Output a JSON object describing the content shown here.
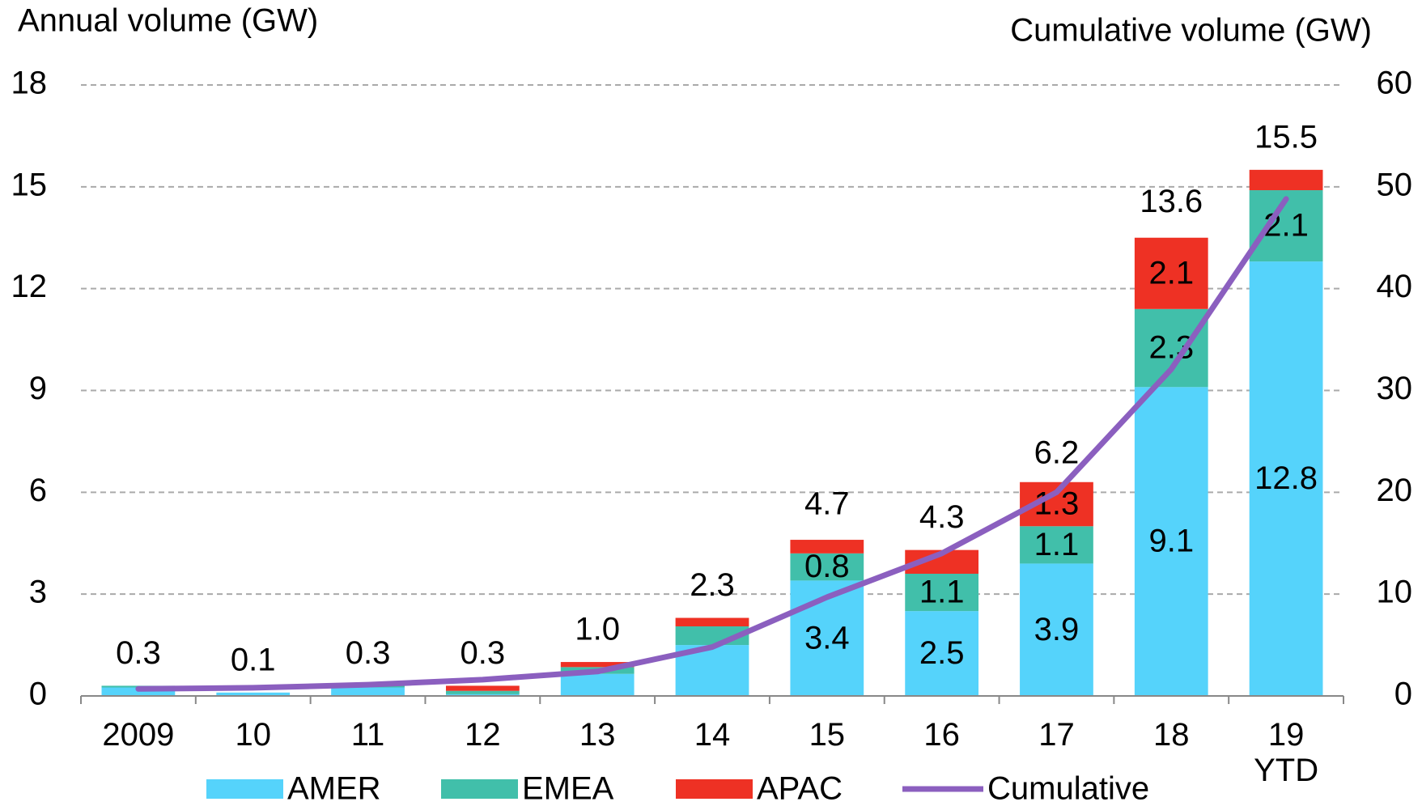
{
  "chart_data": {
    "type": "bar",
    "stacked": true,
    "y_label": "Annual volume (GW)",
    "y2_label": "Cumulative volume (GW)",
    "categories": [
      "2009",
      "10",
      "11",
      "12",
      "13",
      "14",
      "15",
      "16",
      "17",
      "18",
      "19\nYTD"
    ],
    "series": [
      {
        "name": "AMER",
        "color": "#55d3fb",
        "label_color": "#000000",
        "values": [
          0.25,
          0.1,
          0.25,
          0.05,
          0.65,
          1.5,
          3.4,
          2.5,
          3.9,
          9.1,
          12.8
        ],
        "value_labels": [
          null,
          null,
          null,
          null,
          null,
          null,
          "3.4",
          "2.5",
          "3.9",
          "9.1",
          "12.8"
        ]
      },
      {
        "name": "EMEA",
        "color": "#41bfaa",
        "label_color": "#ffffff",
        "values": [
          0.05,
          0,
          0.05,
          0.1,
          0.2,
          0.55,
          0.8,
          1.1,
          1.1,
          2.3,
          2.1
        ],
        "value_labels": [
          null,
          null,
          null,
          null,
          null,
          null,
          "0.8",
          "1.1",
          "1.1",
          "2.3",
          "2.1"
        ]
      },
      {
        "name": "APAC",
        "color": "#ee3124",
        "label_color": "#ffffff",
        "values": [
          0,
          0,
          0,
          0.15,
          0.15,
          0.25,
          0.4,
          0.7,
          1.3,
          2.1,
          0.6
        ],
        "value_labels": [
          null,
          null,
          null,
          null,
          null,
          null,
          null,
          null,
          "1.3",
          "2.1",
          null
        ]
      },
      {
        "name": "Cumulative",
        "type": "line",
        "axis": "y2",
        "color": "#8b5fbf",
        "values": [
          0.7,
          0.8,
          1.1,
          1.6,
          2.4,
          4.8,
          9.7,
          14.0,
          20.0,
          32.1,
          48.8
        ]
      }
    ],
    "totals": [
      0.3,
      0.1,
      0.3,
      0.3,
      1.0,
      2.3,
      4.7,
      4.3,
      6.2,
      13.6,
      15.5
    ],
    "total_labels": [
      "0.3",
      "0.1",
      "0.3",
      "0.3",
      "1.0",
      "2.3",
      "4.7",
      "4.3",
      "6.2",
      "13.6",
      "15.5"
    ],
    "ylim": [
      0,
      18
    ],
    "yticks": [
      0,
      3,
      6,
      9,
      12,
      15,
      18
    ],
    "y2lim": [
      0,
      60
    ],
    "y2ticks": [
      0,
      10,
      20,
      30,
      40,
      50,
      60
    ],
    "grid": true,
    "legend": "bottom"
  }
}
